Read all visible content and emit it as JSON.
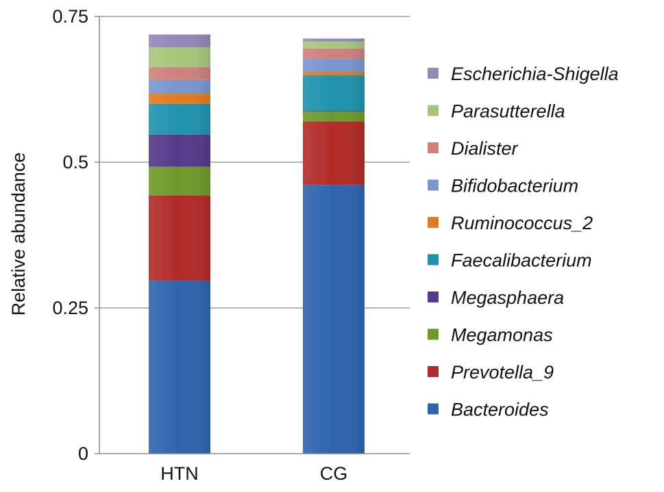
{
  "chart_data": {
    "type": "bar",
    "stacked": true,
    "categories": [
      "HTN",
      "CG"
    ],
    "ylabel": "Relative abundance",
    "xlabel": "",
    "ylim": [
      0,
      0.75
    ],
    "yticks": [
      0,
      0.25,
      0.5,
      0.75
    ],
    "ytick_labels": [
      "0",
      "0.25",
      "0.5",
      "0.75"
    ],
    "grid": true,
    "legend_position": "right",
    "series": [
      {
        "name": "Bacteroides",
        "color": "#2f64ad",
        "values": [
          0.297,
          0.461
        ]
      },
      {
        "name": "Prevotella_9",
        "color": "#b22b28",
        "values": [
          0.146,
          0.109
        ]
      },
      {
        "name": "Megamonas",
        "color": "#6f9a2b",
        "values": [
          0.049,
          0.017
        ]
      },
      {
        "name": "Megasphaera",
        "color": "#553a8a",
        "values": [
          0.055,
          0.001
        ]
      },
      {
        "name": "Faecalibacterium",
        "color": "#1f93ad",
        "values": [
          0.053,
          0.061
        ]
      },
      {
        "name": "Ruminococcus_2",
        "color": "#e07b21",
        "values": [
          0.018,
          0.006
        ]
      },
      {
        "name": "Bifidobacterium",
        "color": "#7797cf",
        "values": [
          0.023,
          0.022
        ]
      },
      {
        "name": "Dialister",
        "color": "#cf7f7e",
        "values": [
          0.022,
          0.018
        ]
      },
      {
        "name": "Parasutterella",
        "color": "#a6c77a",
        "values": [
          0.034,
          0.012
        ]
      },
      {
        "name": "Escherichia-Shigella",
        "color": "#9388b7",
        "values": [
          0.022,
          0.005
        ]
      }
    ]
  }
}
